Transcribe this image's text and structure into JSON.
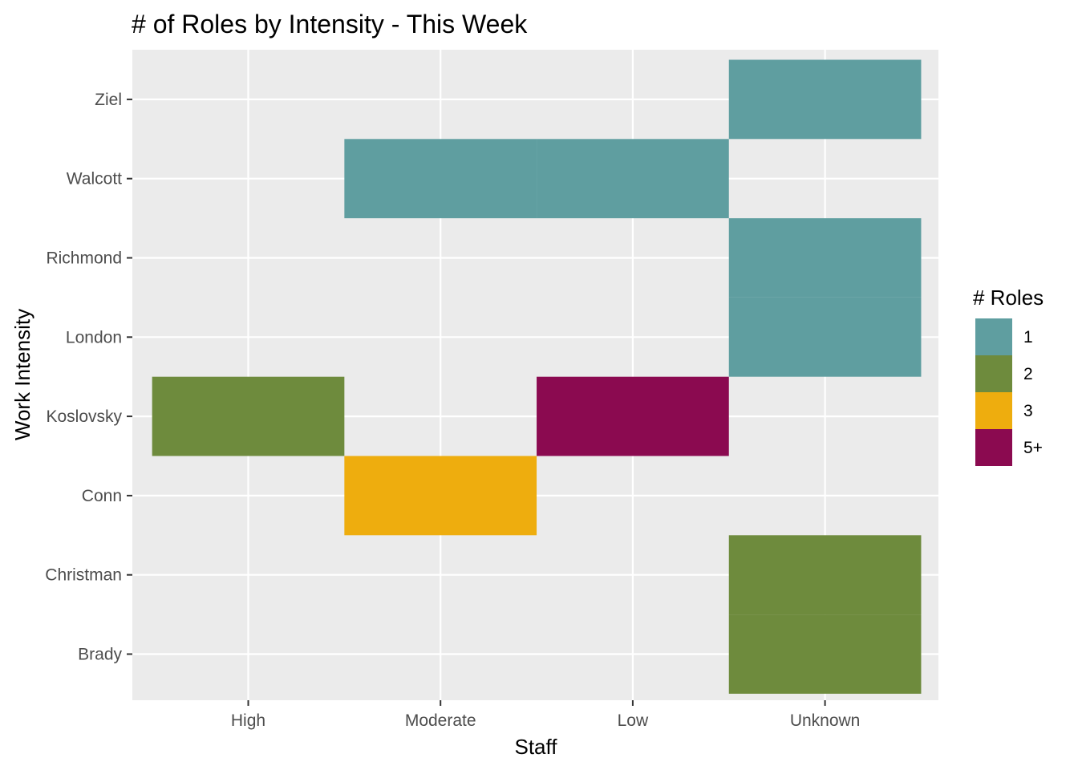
{
  "chart_data": {
    "type": "heatmap",
    "title": "# of Roles by Intensity - This Week",
    "xlabel": "Staff",
    "ylabel": "Work Intensity",
    "x_categories": [
      "High",
      "Moderate",
      "Low",
      "Unknown"
    ],
    "y_categories": [
      "Brady",
      "Christman",
      "Conn",
      "Koslovsky",
      "London",
      "Richmond",
      "Walcott",
      "Ziel"
    ],
    "cells": [
      {
        "y": "Ziel",
        "x": "Unknown",
        "roles": "1"
      },
      {
        "y": "Walcott",
        "x": "Moderate",
        "roles": "1"
      },
      {
        "y": "Walcott",
        "x": "Low",
        "roles": "1"
      },
      {
        "y": "Richmond",
        "x": "Unknown",
        "roles": "1"
      },
      {
        "y": "London",
        "x": "Unknown",
        "roles": "1"
      },
      {
        "y": "Koslovsky",
        "x": "High",
        "roles": "2"
      },
      {
        "y": "Koslovsky",
        "x": "Low",
        "roles": "5+"
      },
      {
        "y": "Conn",
        "x": "Moderate",
        "roles": "3"
      },
      {
        "y": "Christman",
        "x": "Unknown",
        "roles": "2"
      },
      {
        "y": "Brady",
        "x": "Unknown",
        "roles": "2"
      }
    ],
    "legend": {
      "title": "# Roles",
      "position": "right",
      "items": [
        {
          "label": "1",
          "color": "#5f9ea0"
        },
        {
          "label": "2",
          "color": "#6e8b3d"
        },
        {
          "label": "3",
          "color": "#eead0e"
        },
        {
          "label": "5+",
          "color": "#8b0a50"
        }
      ]
    },
    "panel_background": "#ebebeb",
    "grid": true
  }
}
